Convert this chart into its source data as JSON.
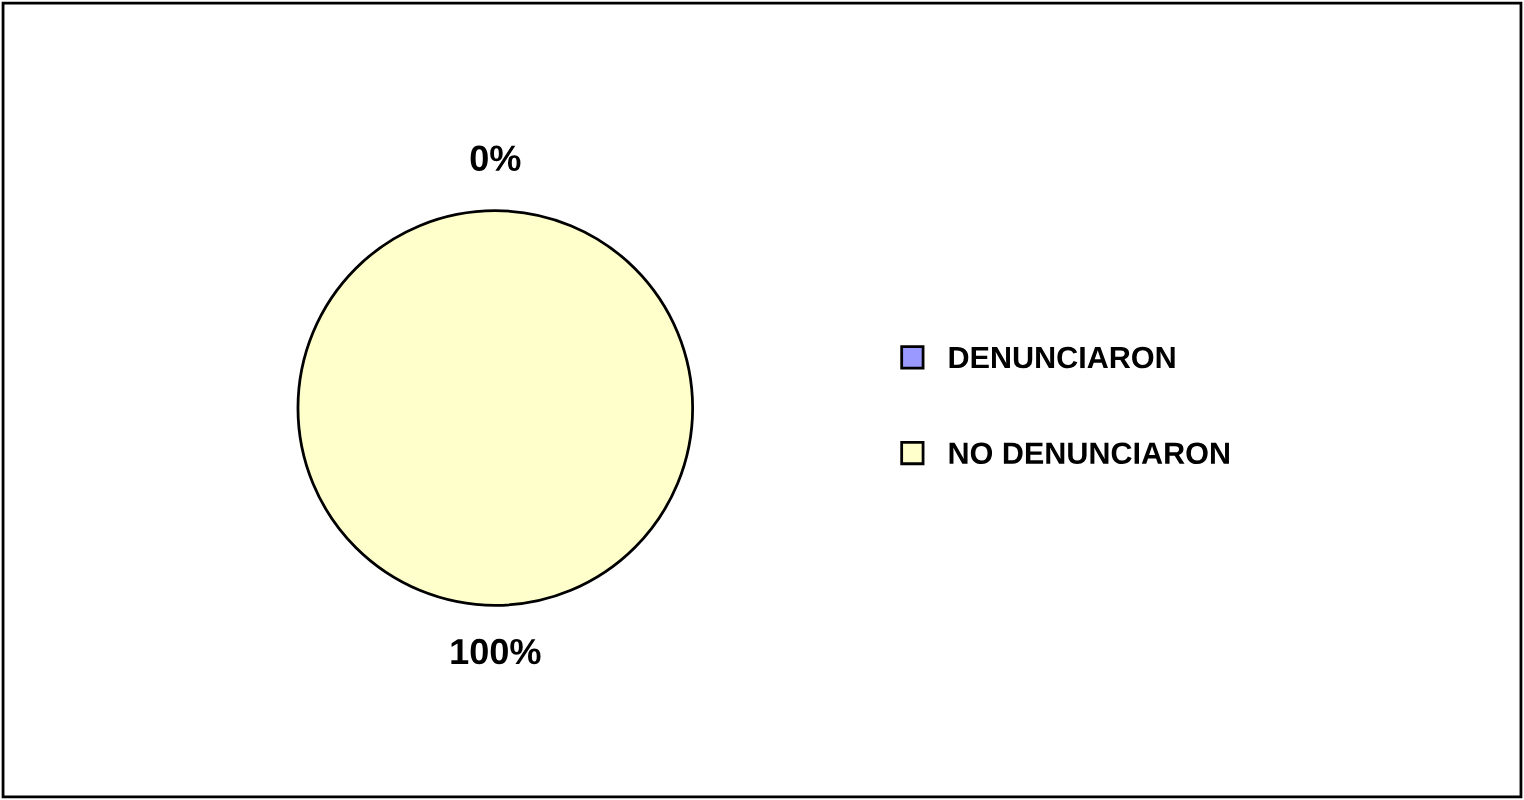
{
  "chart_data": {
    "type": "pie",
    "categories": [
      "DENUNCIARON",
      "NO DENUNCIARON"
    ],
    "values": [
      0,
      100
    ],
    "colors": [
      "#9999ff",
      "#ffffcc"
    ],
    "value_labels": [
      "0%",
      "100%"
    ],
    "legend": "right"
  }
}
